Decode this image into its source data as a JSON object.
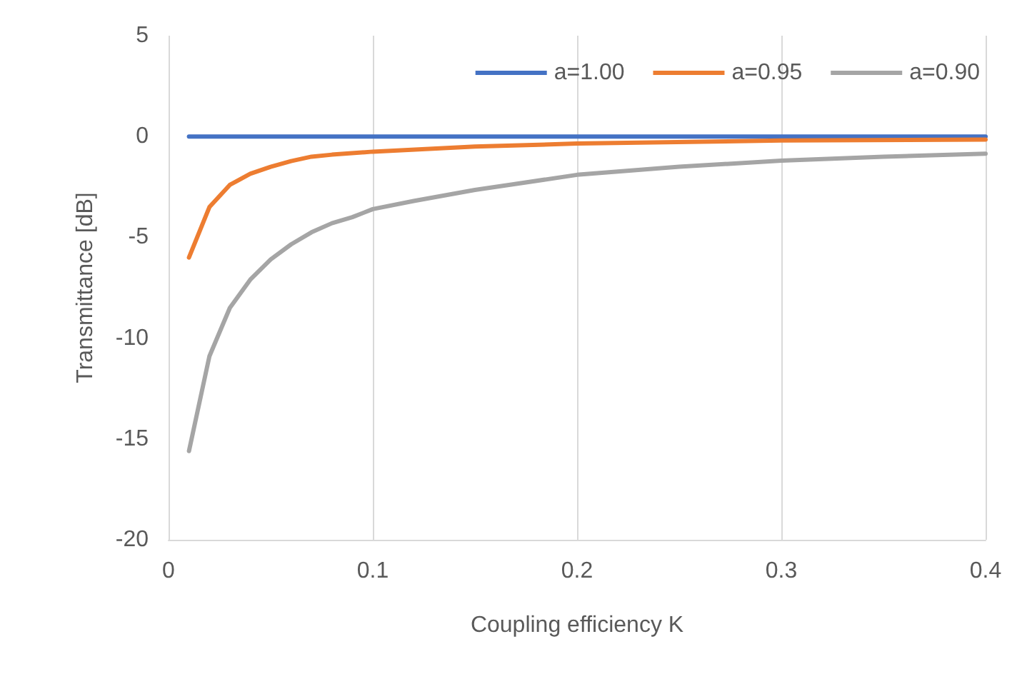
{
  "chart_data": {
    "type": "line",
    "xlabel": "Coupling efficiency K",
    "ylabel": "Transmittance [dB]",
    "xlim": [
      0,
      0.4
    ],
    "xticks": [
      0,
      0.1,
      0.2,
      0.3,
      0.4
    ],
    "ylim": [
      -20,
      5
    ],
    "yticks": [
      -20,
      -15,
      -10,
      -5,
      0,
      5
    ],
    "grid": "x",
    "legend": "top right",
    "marker": "none",
    "line_style": "solid",
    "series": [
      {
        "name": "a=1.00",
        "color": "#4472c4",
        "x": [
          0.01,
          0.05,
          0.1,
          0.2,
          0.3,
          0.4
        ],
        "values": [
          0,
          0,
          0,
          0,
          0,
          0
        ]
      },
      {
        "name": "a=0.95",
        "color": "#ed7d31",
        "x": [
          0.01,
          0.02,
          0.03,
          0.04,
          0.05,
          0.06,
          0.07,
          0.08,
          0.1,
          0.15,
          0.2,
          0.3,
          0.4
        ],
        "values": [
          -6.0,
          -3.5,
          -2.4,
          -1.85,
          -1.5,
          -1.22,
          -1.0,
          -0.9,
          -0.75,
          -0.5,
          -0.35,
          -0.2,
          -0.15
        ]
      },
      {
        "name": "a=0.90",
        "color": "#a5a5a5",
        "x": [
          0.01,
          0.02,
          0.03,
          0.04,
          0.05,
          0.06,
          0.07,
          0.08,
          0.09,
          0.1,
          0.12,
          0.15,
          0.2,
          0.25,
          0.3,
          0.35,
          0.4
        ],
        "values": [
          -15.6,
          -10.9,
          -8.5,
          -7.1,
          -6.1,
          -5.35,
          -4.75,
          -4.3,
          -4.0,
          -3.6,
          -3.2,
          -2.65,
          -1.9,
          -1.5,
          -1.2,
          -1.0,
          -0.85
        ]
      }
    ]
  }
}
